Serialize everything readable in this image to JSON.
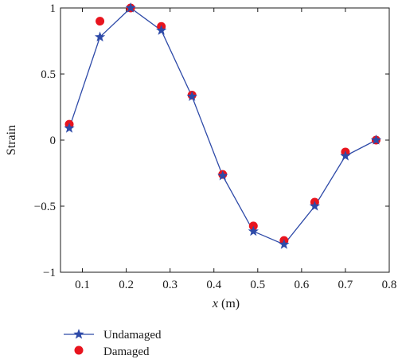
{
  "chart_data": {
    "type": "line",
    "xlabel_var": "x",
    "xlabel_unit": " (m)",
    "ylabel": "Strain",
    "xlim": [
      0.05,
      0.8
    ],
    "ylim": [
      -1,
      1
    ],
    "xticks": [
      0.1,
      0.2,
      0.3,
      0.4,
      0.5,
      0.6,
      0.7,
      0.8
    ],
    "xtick_labels": [
      "0.1",
      "0.2",
      "0.3",
      "0.4",
      "0.5",
      "0.6",
      "0.7",
      "0.8"
    ],
    "yticks": [
      -1,
      -0.5,
      0,
      0.5,
      1
    ],
    "ytick_labels": [
      "−1",
      "−0.5",
      "0",
      "0.5",
      "1"
    ],
    "grid": false,
    "legend_position": "bottom-left-outside",
    "series": [
      {
        "name": "Undamaged",
        "style": "line-star",
        "color": "#2e4aa8",
        "x": [
          0.07,
          0.14,
          0.21,
          0.28,
          0.35,
          0.42,
          0.49,
          0.56,
          0.63,
          0.7,
          0.77
        ],
        "values": [
          0.09,
          0.78,
          1.0,
          0.83,
          0.33,
          -0.27,
          -0.69,
          -0.79,
          -0.5,
          -0.12,
          0.0
        ]
      },
      {
        "name": "Damaged",
        "style": "dot",
        "color": "#e8141e",
        "x": [
          0.07,
          0.14,
          0.21,
          0.28,
          0.35,
          0.42,
          0.49,
          0.56,
          0.63,
          0.7,
          0.77
        ],
        "values": [
          0.12,
          0.9,
          1.0,
          0.86,
          0.34,
          -0.26,
          -0.65,
          -0.76,
          -0.47,
          -0.09,
          0.0
        ]
      }
    ]
  }
}
